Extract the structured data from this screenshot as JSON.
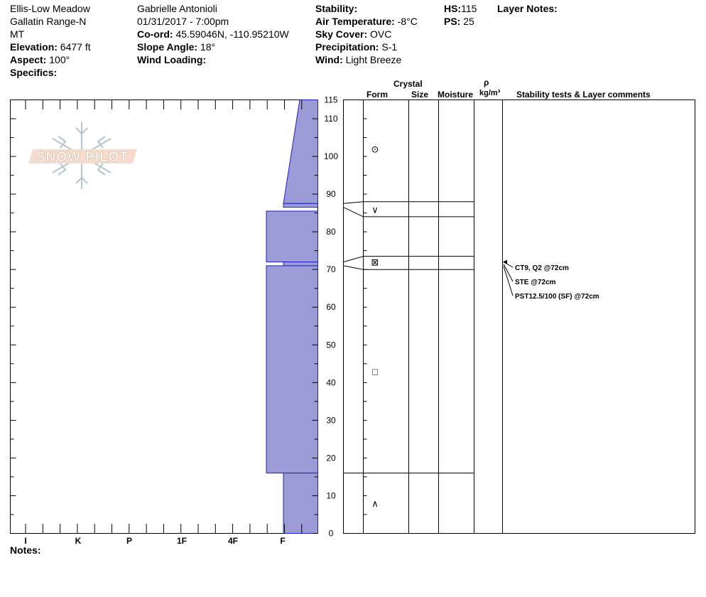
{
  "site": {
    "location": "Ellis-Low Meadow",
    "range": "Gallatin Range-N",
    "state": "MT",
    "elevation_label": "Elevation:",
    "elevation_value": "6477 ft",
    "aspect_label": "Aspect:",
    "aspect_value": "100°",
    "specifics_label": "Specifics:"
  },
  "observer": {
    "name": "Gabrielle Antonioli",
    "datetime": "01/31/2017 - 7:00pm",
    "coord_label": "Co-ord:",
    "coord_value": "45.59046N, -110.95210W",
    "slope_label": "Slope Angle:",
    "slope_value": "18°",
    "wind_loading_label": "Wind Loading:"
  },
  "conditions": {
    "stability_label": "Stability:",
    "air_temp_label": "Air Temperature:",
    "air_temp_value": "-8°C",
    "sky_label": "Sky Cover:",
    "sky_value": "OVC",
    "precip_label": "Precipitation:",
    "precip_value": "S-1",
    "wind_label": "Wind:",
    "wind_value": "Light Breeze"
  },
  "depth": {
    "hs_label": "HS:",
    "hs_value": "115",
    "ps_label": "PS:",
    "ps_value": "25",
    "layer_notes_label": "Layer Notes:"
  },
  "logo_text": "SNOW PILOT",
  "notes_label": "Notes:",
  "columns": {
    "crystal": "Crystal",
    "form": "Form",
    "size": "Size",
    "moisture": "Moisture",
    "rho": "ρ",
    "density_unit": "kg/m³",
    "stability": "Stability tests & Layer comments"
  },
  "colors": {
    "layer_fill": "#9b9bd7",
    "layer_stroke": "#2020c0"
  },
  "chart_data": {
    "type": "snow-profile",
    "height_axis": {
      "min": 0,
      "max": 115,
      "ticks": [
        0,
        10,
        20,
        30,
        40,
        50,
        60,
        70,
        80,
        90,
        100,
        110,
        115
      ]
    },
    "hardness_axis": {
      "labels": [
        "I",
        "K",
        "P",
        "1F",
        "4F",
        "F"
      ]
    },
    "layers": [
      {
        "top": 115,
        "bottom": 87.5,
        "hardness_top": "F-",
        "hardness_bottom": "F"
      },
      {
        "top": 87.5,
        "bottom": 86.5,
        "hardness": "F"
      },
      {
        "top": 85.5,
        "bottom": 72,
        "hardness": "4F-"
      },
      {
        "top": 72,
        "bottom": 71,
        "hardness": "F"
      },
      {
        "top": 71,
        "bottom": 16,
        "hardness": "4F-"
      },
      {
        "top": 16,
        "bottom": 0,
        "hardness": "F"
      }
    ],
    "layer_boundaries": [
      115,
      88,
      84,
      73.5,
      70,
      16
    ],
    "crystal_forms": [
      {
        "height": 102,
        "symbol": "⊙"
      },
      {
        "height": 86,
        "symbol": "∨"
      },
      {
        "height": 72,
        "symbol": "⊠"
      },
      {
        "height": 43,
        "symbol": "□"
      },
      {
        "height": 8,
        "symbol": "∧"
      }
    ],
    "stability_tests": [
      "CT9, Q2 @72cm",
      "STE @72cm",
      "PST12.5/100 (SF) @72cm"
    ]
  }
}
